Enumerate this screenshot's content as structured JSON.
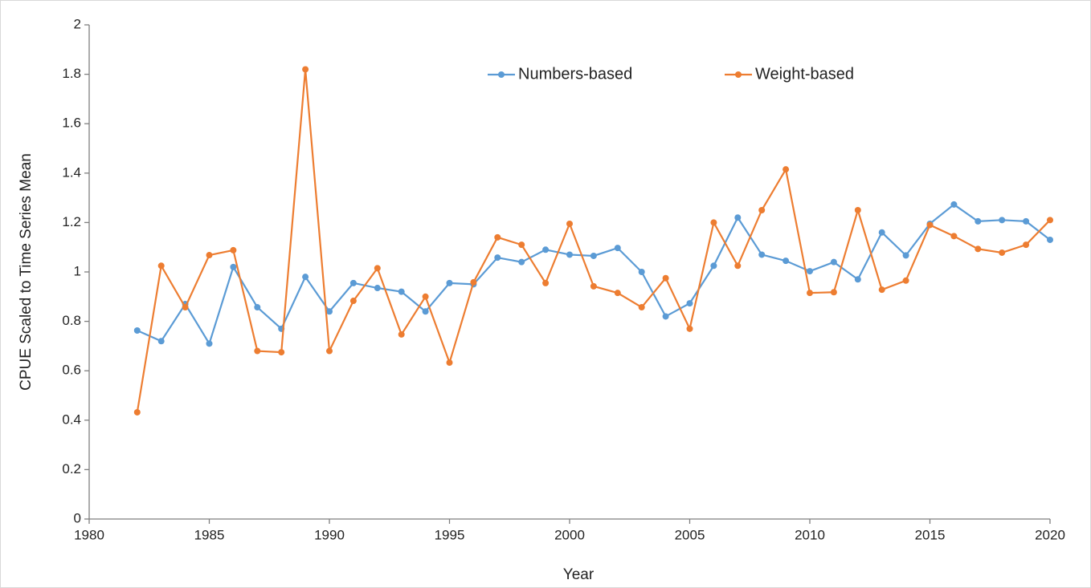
{
  "chart_data": {
    "type": "line",
    "x": [
      1982,
      1983,
      1984,
      1985,
      1986,
      1987,
      1988,
      1989,
      1990,
      1991,
      1992,
      1993,
      1994,
      1995,
      1996,
      1997,
      1998,
      1999,
      2000,
      2001,
      2002,
      2003,
      2004,
      2005,
      2006,
      2007,
      2008,
      2009,
      2010,
      2011,
      2012,
      2013,
      2014,
      2015,
      2016,
      2017,
      2018,
      2019,
      2020
    ],
    "series": [
      {
        "name": "Numbers-based",
        "color": "#5b9bd5",
        "values": [
          0.763,
          0.72,
          0.87,
          0.71,
          1.02,
          0.857,
          0.77,
          0.98,
          0.84,
          0.955,
          0.935,
          0.92,
          0.84,
          0.955,
          0.95,
          1.058,
          1.04,
          1.09,
          1.07,
          1.065,
          1.097,
          1.0,
          0.82,
          0.873,
          1.025,
          1.22,
          1.07,
          1.045,
          1.003,
          1.04,
          0.97,
          1.16,
          1.067,
          1.195,
          1.273,
          1.205,
          1.21,
          1.205,
          1.13
        ]
      },
      {
        "name": "Weight-based",
        "color": "#ed7d31",
        "values": [
          0.432,
          1.025,
          0.857,
          1.068,
          1.088,
          0.68,
          0.675,
          1.82,
          0.68,
          0.883,
          1.015,
          0.747,
          0.9,
          0.633,
          0.958,
          1.14,
          1.11,
          0.955,
          1.195,
          0.942,
          0.915,
          0.857,
          0.975,
          0.77,
          1.2,
          1.025,
          1.25,
          1.415,
          0.915,
          0.918,
          1.25,
          0.928,
          0.965,
          1.19,
          1.145,
          1.093,
          1.078,
          1.11,
          1.21
        ]
      }
    ],
    "xlabel": "Year",
    "ylabel": "CPUE Scaled to Time Series Mean",
    "xlim": [
      1980,
      2020
    ],
    "xticks": [
      1980,
      1985,
      1990,
      1995,
      2000,
      2005,
      2010,
      2015,
      2020
    ],
    "ylim": [
      0,
      2
    ],
    "yticks": [
      0,
      0.2,
      0.4,
      0.6,
      0.8,
      1,
      1.2,
      1.4,
      1.6,
      1.8,
      2
    ],
    "grid": false,
    "legend": "upper center"
  }
}
